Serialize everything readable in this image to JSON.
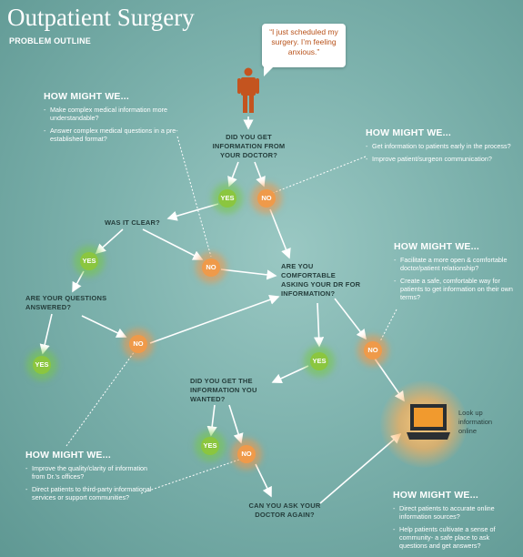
{
  "header": {
    "title": "Outpatient Surgery",
    "subtitle": "PROBLEM OUTLINE"
  },
  "speech_bubble": "“I just scheduled my surgery. I’m feeling anxious.”",
  "questions": {
    "got_info": "DID YOU GET INFORMATION FROM YOUR DOCTOR?",
    "was_clear": "WAS IT CLEAR?",
    "questions_answered": "ARE YOUR QUESTIONS ANSWERED?",
    "comfortable": "ARE YOU COMFORTABLE ASKING YOUR DR FOR INFORMATION?",
    "wanted_info": "DID YOU GET THE INFORMATION YOU WANTED?",
    "ask_again": "CAN YOU ASK YOUR DOCTOR AGAIN?"
  },
  "answers": {
    "yes": "YES",
    "no": "NO"
  },
  "laptop_label": "Look up information online",
  "hmw_heading": "HOW MIGHT WE...",
  "hmw": {
    "top_left": [
      "Make complex medical information more understandable?",
      "Answer complex medical questions in a pre-established format?"
    ],
    "top_right": [
      "Get information to patients early in the process?",
      "Improve patient/surgeon communication?"
    ],
    "mid_right": [
      "Facilitate a more open & comfortable doctor/patient relationship?",
      "Create a safe, comfortable way for patients to get information on their own terms?"
    ],
    "bottom_left": [
      "Improve the quality/clarity of information from Dr.’s offices?",
      "Direct patients to third-party informational services or support communities?"
    ],
    "bottom_right": [
      "Direct patients to accurate online information sources?",
      "Help patients cultivate a sense of community- a safe place to ask questions and get answers?"
    ]
  }
}
